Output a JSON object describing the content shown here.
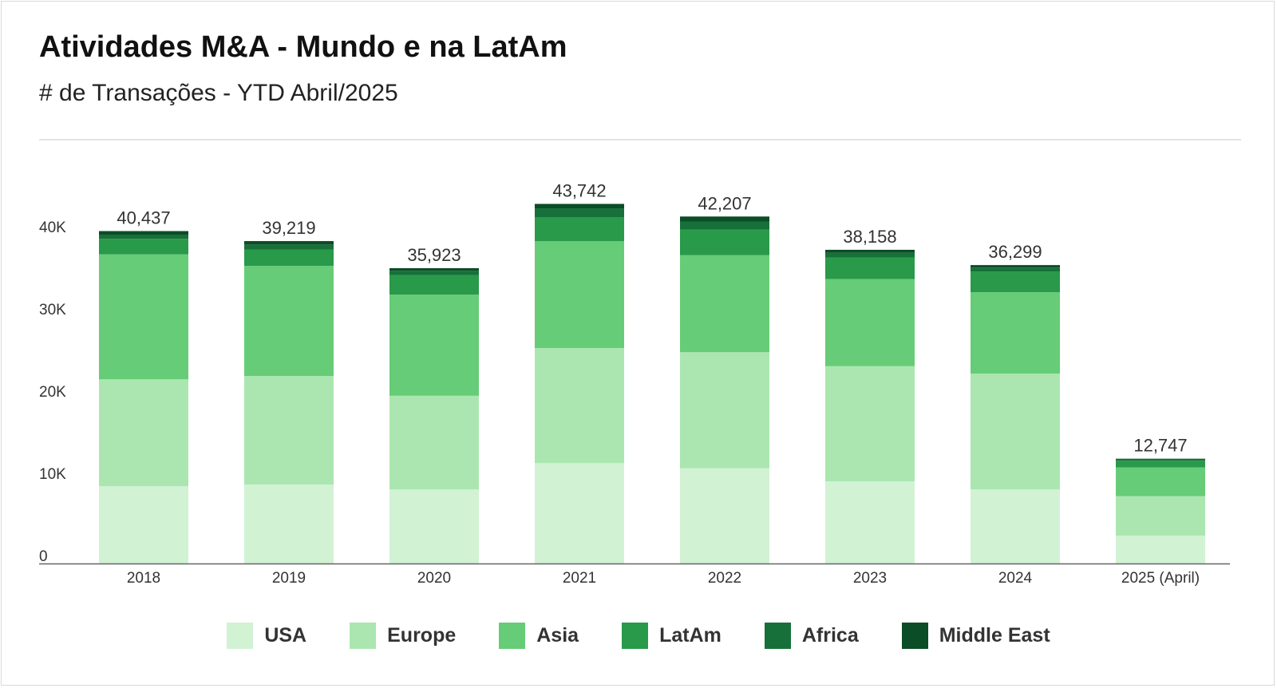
{
  "header": {
    "title": "Atividades M&A - Mundo e na LatAm",
    "subtitle": "# de Transações - YTD Abril/2025"
  },
  "chart_data": {
    "type": "bar",
    "stacked": true,
    "title": "Atividades M&A - Mundo e na LatAm",
    "subtitle": "# de Transações - YTD Abril/2025",
    "xlabel": "",
    "ylabel": "",
    "ylim": [
      0,
      40000
    ],
    "yticks": [
      0,
      10000,
      20000,
      30000,
      40000
    ],
    "ytick_labels": [
      "0",
      "10K",
      "20K",
      "30K",
      "40K"
    ],
    "grid": false,
    "legend_position": "bottom",
    "categories": [
      "2018",
      "2019",
      "2020",
      "2021",
      "2022",
      "2023",
      "2024",
      "2025 (April)"
    ],
    "totals": [
      40437,
      39219,
      35923,
      43742,
      42207,
      38158,
      36299,
      12747
    ],
    "total_labels": [
      "40,437",
      "39,219",
      "35,923",
      "43,742",
      "42,207",
      "38,158",
      "36,299",
      "12,747"
    ],
    "series": [
      {
        "name": "USA",
        "color": "#d2f2d4",
        "values": [
          9400,
          9600,
          9000,
          12200,
          11600,
          10000,
          9000,
          3400
        ]
      },
      {
        "name": "Europe",
        "color": "#abe6b0",
        "values": [
          13000,
          13200,
          11400,
          14000,
          14100,
          14000,
          14100,
          4800
        ]
      },
      {
        "name": "Asia",
        "color": "#66cc77",
        "values": [
          15200,
          13400,
          12300,
          13000,
          11800,
          10600,
          9900,
          3500
        ]
      },
      {
        "name": "LatAm",
        "color": "#29994a",
        "values": [
          1900,
          2000,
          2400,
          2900,
          3100,
          2600,
          2500,
          800
        ]
      },
      {
        "name": "Africa",
        "color": "#17703a",
        "values": [
          500,
          600,
          500,
          1100,
          1000,
          600,
          500,
          150
        ]
      },
      {
        "name": "Middle East",
        "color": "#0b4d26",
        "values": [
          437,
          419,
          323,
          542,
          607,
          358,
          299,
          97
        ]
      }
    ]
  }
}
